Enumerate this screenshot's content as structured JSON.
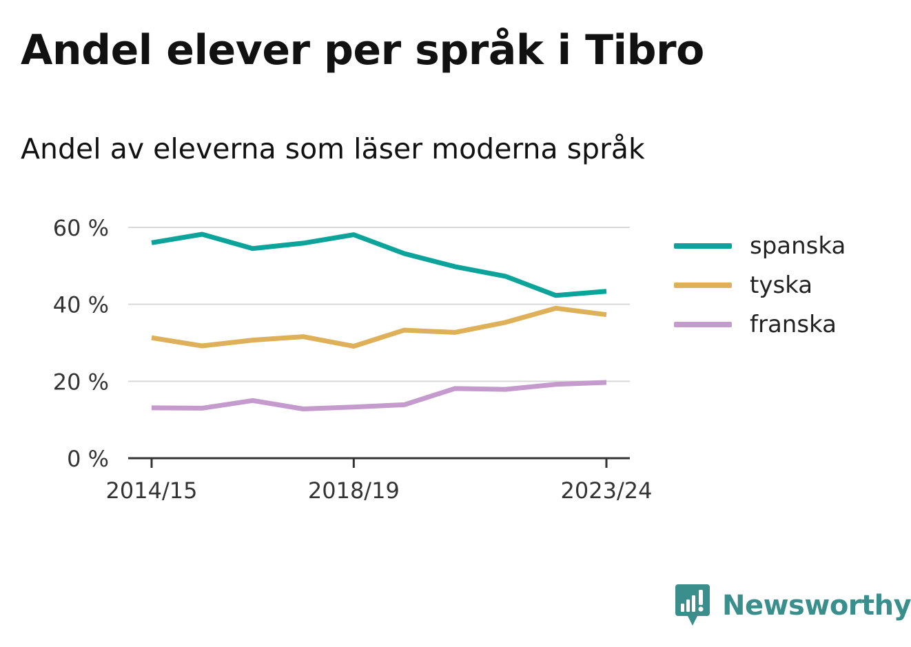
{
  "title": "Andel elever per språk i Tibro",
  "subtitle": "Andel av eleverna som läser moderna språk",
  "brand": {
    "name": "Newsworthy",
    "color": "#3a8f8c"
  },
  "chart_data": {
    "type": "line",
    "title": "Andel elever per språk i Tibro",
    "subtitle": "Andel av eleverna som läser moderna språk",
    "x": [
      "2014/15",
      "2015/16",
      "2016/17",
      "2017/18",
      "2018/19",
      "2019/20",
      "2020/21",
      "2021/22",
      "2022/23",
      "2023/24"
    ],
    "x_tick_labels": [
      "2014/15",
      "2018/19",
      "2023/24"
    ],
    "y_ticks": [
      0,
      20,
      40,
      60
    ],
    "y_tick_labels": [
      "0 %",
      "20 %",
      "40 %",
      "60 %"
    ],
    "ylim": [
      0,
      62
    ],
    "grid": true,
    "legend_position": "right",
    "series": [
      {
        "name": "spanska",
        "color": "#0ba39a",
        "values": [
          56,
          58.2,
          54.5,
          55.9,
          58.1,
          53.2,
          49.8,
          47.3,
          42.3,
          43.4
        ]
      },
      {
        "name": "tyska",
        "color": "#deb05a",
        "values": [
          31.3,
          29.2,
          30.7,
          31.6,
          29.1,
          33.3,
          32.7,
          35.3,
          39,
          37.3
        ]
      },
      {
        "name": "franska",
        "color": "#c49bcc",
        "values": [
          13.1,
          13.0,
          15.0,
          12.8,
          13.3,
          13.9,
          18.1,
          17.9,
          19.2,
          19.7
        ]
      }
    ]
  }
}
